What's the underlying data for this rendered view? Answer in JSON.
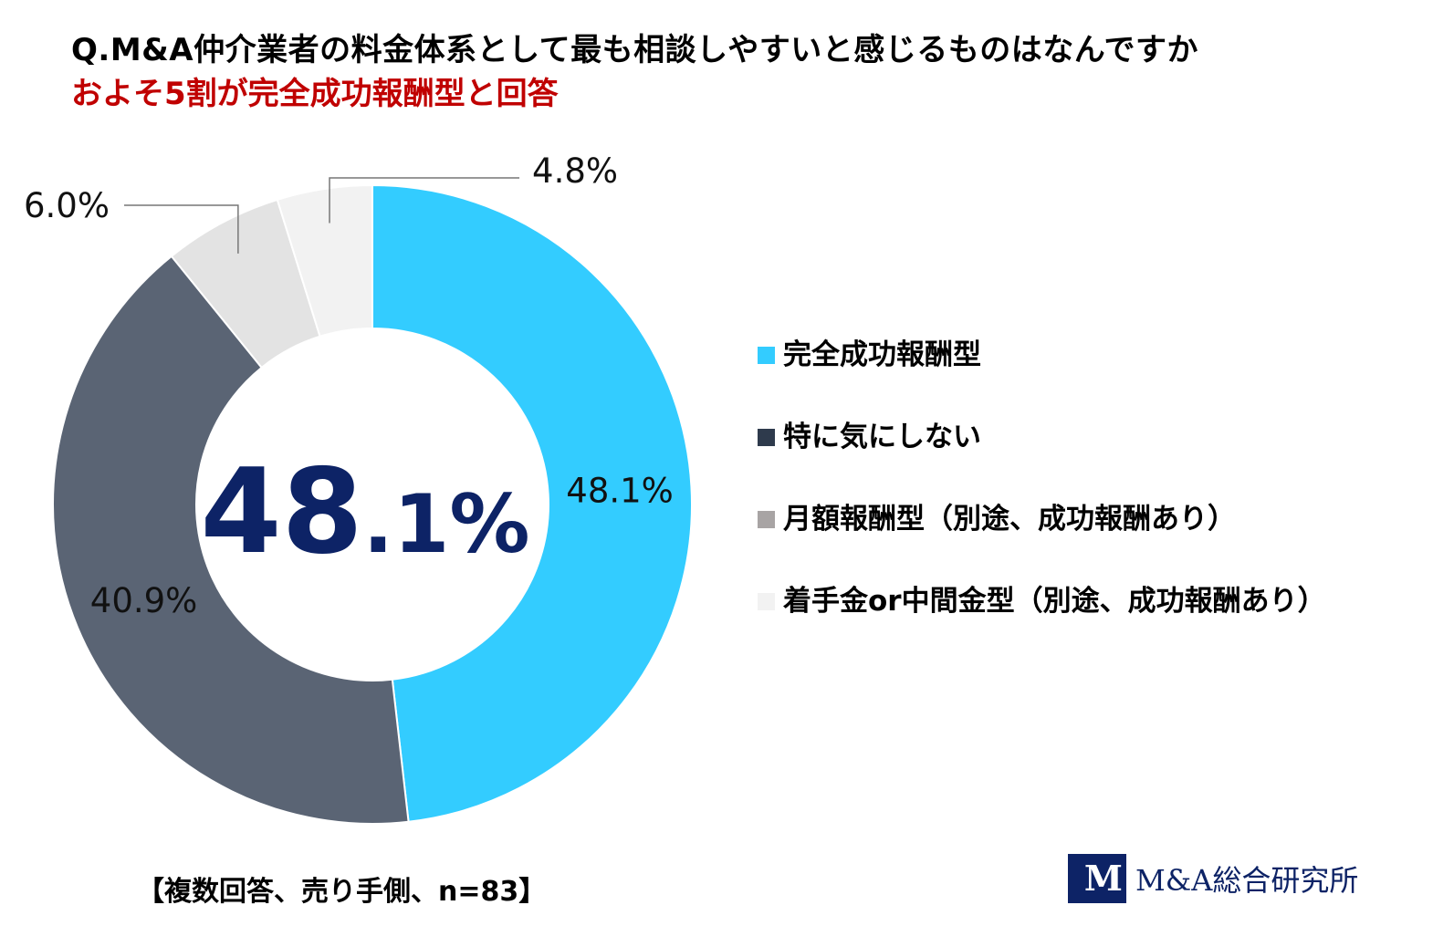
{
  "header": {
    "title": "Q.M&A仲介業者の料金体系として最も相談しやすいと感じるものはなんですか",
    "subtitle": "およそ5割が完全成功報酬型と回答"
  },
  "chart_data": {
    "type": "pie",
    "style": "donut",
    "categories": [
      "完全成功報酬型",
      "特に気にしない",
      "月額報酬型（別途、成功報酬あり）",
      "着手金or中間金型（別途、成功報酬あり）"
    ],
    "values": [
      48.1,
      40.9,
      6.0,
      4.8
    ],
    "value_labels": [
      "48.1%",
      "40.9%",
      "6.0%",
      "4.8%"
    ],
    "colors": [
      "#33ccff",
      "#5a6474",
      "#e3e3e3",
      "#f2f2f2"
    ],
    "legend_colors": [
      "#33ccff",
      "#2e3a4c",
      "#a8a4a4",
      "#f2f2f2"
    ],
    "center_label": {
      "main": "48",
      "dot": ".",
      "decimal": "1",
      "unit": "%"
    },
    "legend_position": "right"
  },
  "legend": {
    "items": [
      {
        "label": "完全成功報酬型"
      },
      {
        "label": "特に気にしない"
      },
      {
        "label": "月額報酬型（別途、成功報酬あり）"
      },
      {
        "label": "着手金or中間金型（別途、成功報酬あり）"
      }
    ]
  },
  "footer": {
    "note": "【複数回答、売り手側、n=83】",
    "logo_mark": "M",
    "logo_text": "M&A総合研究所"
  }
}
